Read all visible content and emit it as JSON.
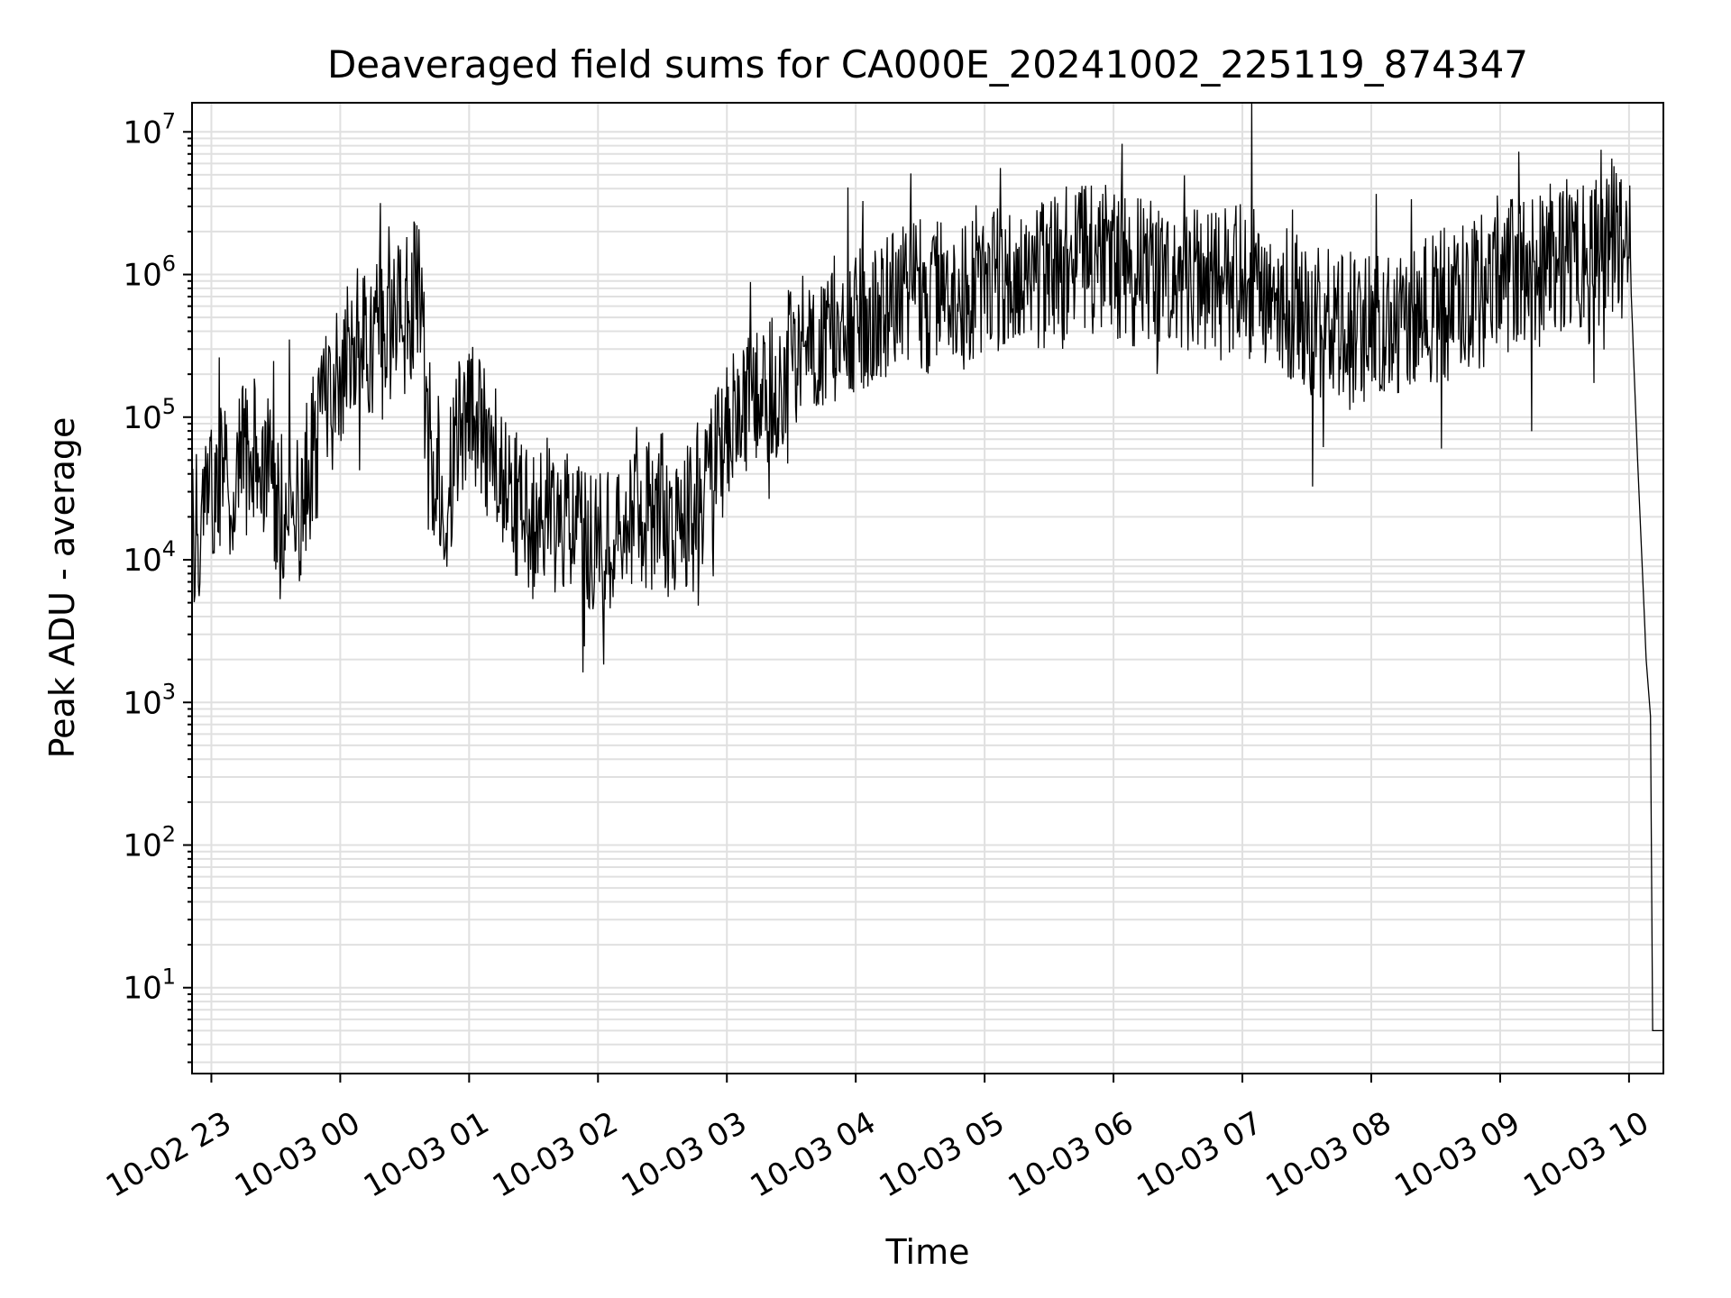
{
  "chart_data": {
    "type": "line",
    "title": "Deaveraged field sums for CA000E_20241002_225119_874347",
    "xlabel": "Time",
    "ylabel": "Peak ADU - average",
    "y_scale": "log",
    "ylim": [
      2.5,
      16000000
    ],
    "xlim": [
      "2024-10-02 22:51",
      "2024-10-03 10:16"
    ],
    "grid": true,
    "line_color": "#000000",
    "grid_color": "#e0e0e0",
    "x_tick_labels": [
      "10-02 23",
      "10-03 00",
      "10-03 01",
      "10-03 02",
      "10-03 03",
      "10-03 04",
      "10-03 05",
      "10-03 06",
      "10-03 07",
      "10-03 08",
      "10-03 09",
      "10-03 10"
    ],
    "x_ticks": [
      "2024-10-02 23:00",
      "2024-10-03 00:00",
      "2024-10-03 01:00",
      "2024-10-03 02:00",
      "2024-10-03 03:00",
      "2024-10-03 04:00",
      "2024-10-03 05:00",
      "2024-10-03 06:00",
      "2024-10-03 07:00",
      "2024-10-03 08:00",
      "2024-10-03 09:00",
      "2024-10-03 10:00"
    ],
    "y_ticks": [
      {
        "value": 10,
        "base": "10",
        "exp": "1"
      },
      {
        "value": 100,
        "base": "10",
        "exp": "2"
      },
      {
        "value": 1000,
        "base": "10",
        "exp": "3"
      },
      {
        "value": 10000,
        "base": "10",
        "exp": "4"
      },
      {
        "value": 100000,
        "base": "10",
        "exp": "5"
      },
      {
        "value": 1000000,
        "base": "10",
        "exp": "6"
      },
      {
        "value": 10000000,
        "base": "10",
        "exp": "7"
      }
    ],
    "series": [
      {
        "x": [
          "2024-10-02 22:51",
          "2024-10-02 23:00",
          "2024-10-02 23:10",
          "2024-10-02 23:20",
          "2024-10-02 23:30",
          "2024-10-02 23:40",
          "2024-10-02 23:50",
          "2024-10-03 00:00",
          "2024-10-03 00:10",
          "2024-10-03 00:20",
          "2024-10-03 00:30",
          "2024-10-03 00:38",
          "2024-10-03 00:40",
          "2024-10-03 00:50",
          "2024-10-03 01:00",
          "2024-10-03 01:10",
          "2024-10-03 01:20",
          "2024-10-03 01:30",
          "2024-10-03 01:40",
          "2024-10-03 01:50",
          "2024-10-03 02:00",
          "2024-10-03 02:10",
          "2024-10-03 02:20",
          "2024-10-03 02:30",
          "2024-10-03 02:40",
          "2024-10-03 02:50",
          "2024-10-03 03:00",
          "2024-10-03 03:10",
          "2024-10-03 03:20",
          "2024-10-03 03:30",
          "2024-10-03 03:40",
          "2024-10-03 03:50",
          "2024-10-03 04:00",
          "2024-10-03 04:15",
          "2024-10-03 04:30",
          "2024-10-03 04:45",
          "2024-10-03 05:00",
          "2024-10-03 05:15",
          "2024-10-03 05:30",
          "2024-10-03 05:45",
          "2024-10-03 06:00",
          "2024-10-03 06:15",
          "2024-10-03 06:30",
          "2024-10-03 06:45",
          "2024-10-03 07:00",
          "2024-10-03 07:15",
          "2024-10-03 07:30",
          "2024-10-03 07:45",
          "2024-10-03 08:00",
          "2024-10-03 08:15",
          "2024-10-03 08:30",
          "2024-10-03 08:45",
          "2024-10-03 09:00",
          "2024-10-03 09:15",
          "2024-10-03 09:30",
          "2024-10-03 09:45",
          "2024-10-03 10:00",
          "2024-10-03 10:02",
          "2024-10-03 10:04",
          "2024-10-03 10:06",
          "2024-10-03 10:08",
          "2024-10-03 10:10",
          "2024-10-03 10:11",
          "2024-10-03 10:13",
          "2024-10-03 10:16"
        ],
        "y": [
          15000,
          30000,
          40000,
          60000,
          30000,
          20000,
          80000,
          200000,
          350000,
          400000,
          500000,
          900000,
          60000,
          30000,
          150000,
          60000,
          25000,
          15000,
          18000,
          15000,
          13000,
          18000,
          20000,
          22000,
          18000,
          25000,
          80000,
          120000,
          150000,
          300000,
          400000,
          450000,
          500000,
          600000,
          700000,
          650000,
          1000000,
          900000,
          1100000,
          1300000,
          1200000,
          1000000,
          900000,
          800000,
          900000,
          700000,
          500000,
          400000,
          450000,
          500000,
          600000,
          700000,
          900000,
          1100000,
          1400000,
          1500000,
          1800000,
          300000,
          50000,
          10000,
          2000,
          800,
          5,
          5,
          5
        ]
      }
    ]
  }
}
